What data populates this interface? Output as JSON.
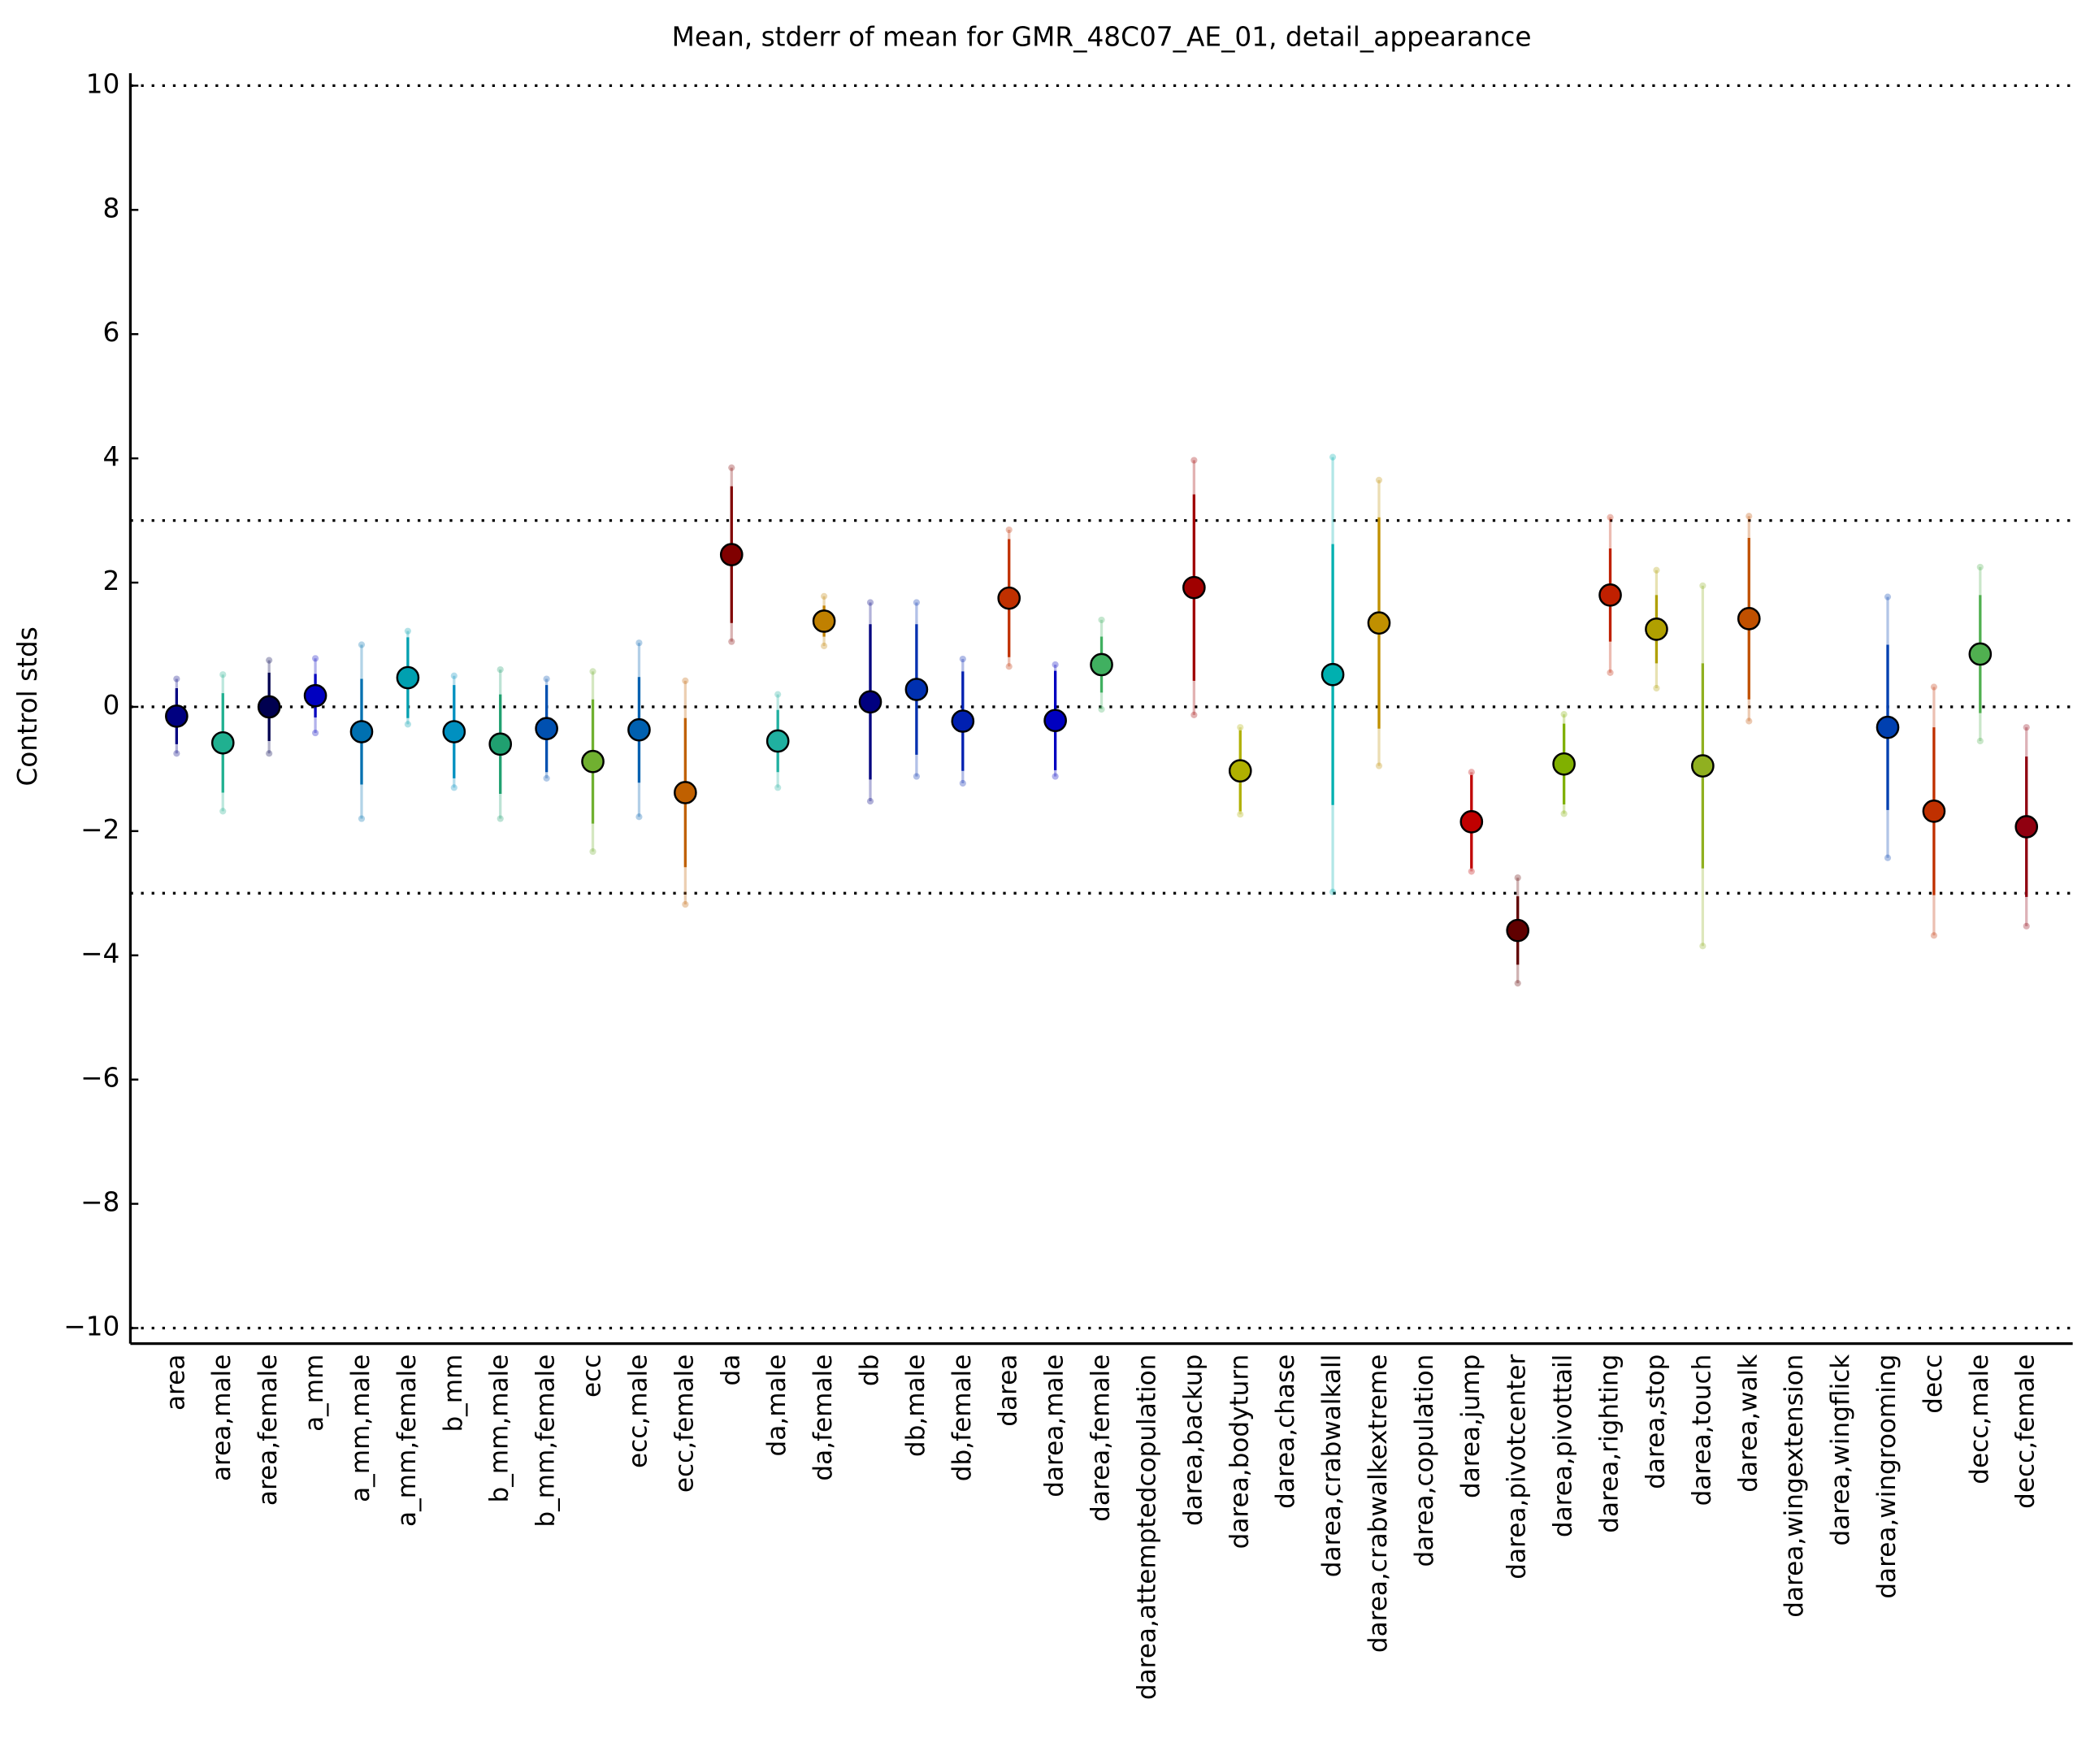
{
  "chart_data": {
    "type": "errorbar",
    "title": "Mean, stderr of mean for GMR_48C07_AE_01, detail_appearance",
    "y_label": "Control stds",
    "categories": [
      "area",
      "area,male",
      "area,female",
      "a_mm",
      "a_mm,male",
      "a_mm,female",
      "b_mm",
      "b_mm,male",
      "b_mm,female",
      "ecc",
      "ecc,male",
      "ecc,female",
      "da",
      "da,male",
      "da,female",
      "db",
      "db,male",
      "db,female",
      "darea",
      "darea,male",
      "darea,female",
      "darea,attemptedcopulation",
      "darea,backup",
      "darea,bodyturn",
      "darea,chase",
      "darea,crabwalkall",
      "darea,crabwalkextreme",
      "darea,copulation",
      "darea,jump",
      "darea,pivotcenter",
      "darea,pivottail",
      "darea,righting",
      "darea,stop",
      "darea,touch",
      "darea,walk",
      "darea,wingextension",
      "darea,wingflick",
      "darea,wingrooming",
      "decc",
      "decc,male",
      "decc,female"
    ],
    "values": [
      -0.15,
      -0.58,
      0.0,
      0.18,
      -0.4,
      0.47,
      -0.4,
      -0.6,
      -0.35,
      -0.88,
      -0.37,
      -1.38,
      2.45,
      -0.55,
      1.38,
      0.08,
      0.28,
      -0.23,
      1.75,
      -0.22,
      0.68,
      null,
      1.92,
      -1.03,
      null,
      0.52,
      1.35,
      null,
      -1.85,
      -3.6,
      -0.92,
      1.8,
      1.25,
      -0.95,
      1.42,
      null,
      null,
      -0.33,
      -1.68,
      0.85,
      -1.93
    ],
    "errors": [
      0.45,
      0.8,
      0.55,
      0.35,
      0.85,
      0.65,
      0.75,
      0.8,
      0.7,
      1.0,
      0.85,
      1.2,
      1.1,
      0.5,
      0.25,
      1.25,
      1.05,
      0.8,
      0.95,
      0.8,
      0.45,
      null,
      1.5,
      0.65,
      null,
      2.1,
      1.7,
      null,
      0.75,
      0.55,
      0.65,
      0.75,
      0.55,
      1.65,
      1.3,
      null,
      null,
      1.33,
      1.35,
      0.95,
      1.13
    ],
    "spread": [
      0.6,
      1.1,
      0.75,
      0.6,
      1.4,
      0.75,
      0.9,
      1.2,
      0.8,
      1.45,
      1.4,
      1.8,
      1.4,
      0.75,
      0.4,
      1.6,
      1.4,
      1.0,
      1.1,
      0.9,
      0.72,
      null,
      2.05,
      0.7,
      null,
      3.5,
      2.3,
      null,
      0.8,
      0.85,
      0.8,
      1.25,
      0.95,
      2.9,
      1.65,
      null,
      null,
      2.1,
      2.0,
      1.4,
      1.6
    ],
    "colors": [
      "#000080",
      "#20b090",
      "#000050",
      "#0000c0",
      "#0070b0",
      "#00a0b0",
      "#0090c0",
      "#20a070",
      "#0050b0",
      "#70b030",
      "#0060b0",
      "#c06000",
      "#800000",
      "#20b0a0",
      "#c08000",
      "#000080",
      "#0030b0",
      "#0020b0",
      "#c03000",
      "#0000c0",
      "#40b060",
      "#909090",
      "#a00000",
      "#b0b000",
      "#909090",
      "#00b0b0",
      "#c09000",
      "#909090",
      "#c00000",
      "#600000",
      "#80b000",
      "#c02000",
      "#b0a000",
      "#90b020",
      "#c05000",
      "#909090",
      "#909090",
      "#0040b0",
      "#c03000",
      "#50b050",
      "#900010"
    ],
    "ylim": [
      -10.25,
      10.2
    ],
    "yticks": [
      {
        "value": -10,
        "label": "−10"
      },
      {
        "value": -8,
        "label": "−8"
      },
      {
        "value": -6,
        "label": "−6"
      },
      {
        "value": -4,
        "label": "−4"
      },
      {
        "value": -2,
        "label": "−2"
      },
      0,
      2,
      4,
      6,
      8,
      10
    ],
    "hlines": [
      10,
      3,
      0,
      -3,
      -10
    ]
  }
}
